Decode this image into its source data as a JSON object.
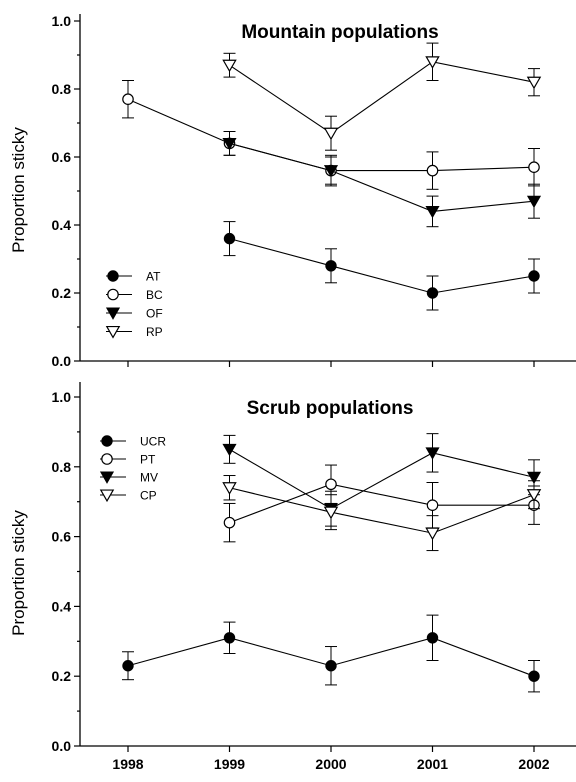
{
  "chart_data": [
    {
      "type": "line",
      "title": "Mountain populations",
      "xlabel": "",
      "ylabel": "Proportion sticky",
      "x": [
        1998,
        1999,
        2000,
        2001,
        2002
      ],
      "xlim": [
        1997.5,
        2002.5
      ],
      "ylim": [
        0.0,
        1.0
      ],
      "yticks": [
        "0.0",
        "0.2",
        "0.4",
        "0.6",
        "0.8",
        "1.0"
      ],
      "grid": false,
      "legend": "bottom-left",
      "series": [
        {
          "name": "AT",
          "marker": "filled-circle",
          "values": [
            null,
            0.36,
            0.28,
            0.2,
            0.25
          ],
          "error": [
            null,
            0.05,
            0.05,
            0.05,
            0.05
          ]
        },
        {
          "name": "BC",
          "marker": "open-circle",
          "values": [
            0.77,
            0.64,
            0.56,
            0.56,
            0.57
          ],
          "error": [
            0.055,
            0.035,
            0.045,
            0.055,
            0.055
          ]
        },
        {
          "name": "OF",
          "marker": "filled-triangle-down",
          "values": [
            null,
            0.64,
            0.56,
            0.44,
            0.47
          ],
          "error": [
            null,
            0.035,
            0.04,
            0.045,
            0.05
          ]
        },
        {
          "name": "RP",
          "marker": "open-triangle-down",
          "values": [
            null,
            0.87,
            0.67,
            0.88,
            0.82
          ],
          "error": [
            null,
            0.035,
            0.05,
            0.055,
            0.04
          ]
        }
      ]
    },
    {
      "type": "line",
      "title": "Scrub populations",
      "xlabel": "",
      "ylabel": "Proportion sticky",
      "x": [
        1998,
        1999,
        2000,
        2001,
        2002
      ],
      "xlim": [
        1997.5,
        2002.5
      ],
      "ylim": [
        0.0,
        1.0
      ],
      "yticks": [
        "0.0",
        "0.2",
        "0.4",
        "0.6",
        "0.8",
        "1.0"
      ],
      "xticks": [
        "1998",
        "1999",
        "2000",
        "2001",
        "2002"
      ],
      "grid": false,
      "legend": "top-left",
      "series": [
        {
          "name": "UCR",
          "marker": "filled-circle",
          "values": [
            0.23,
            0.31,
            0.23,
            0.31,
            0.2
          ],
          "error": [
            0.04,
            0.045,
            0.055,
            0.065,
            0.045
          ]
        },
        {
          "name": "PT",
          "marker": "open-circle",
          "values": [
            null,
            0.64,
            0.75,
            0.69,
            0.69
          ],
          "error": [
            null,
            0.055,
            0.055,
            0.065,
            0.055
          ]
        },
        {
          "name": "MV",
          "marker": "filled-triangle-down",
          "values": [
            null,
            0.85,
            0.68,
            0.84,
            0.77
          ],
          "error": [
            null,
            0.04,
            0.05,
            0.055,
            0.05
          ]
        },
        {
          "name": "CP",
          "marker": "open-triangle-down",
          "values": [
            null,
            0.74,
            0.67,
            0.61,
            0.72
          ],
          "error": [
            null,
            0.035,
            0.05,
            0.05,
            0.04
          ]
        }
      ]
    }
  ]
}
